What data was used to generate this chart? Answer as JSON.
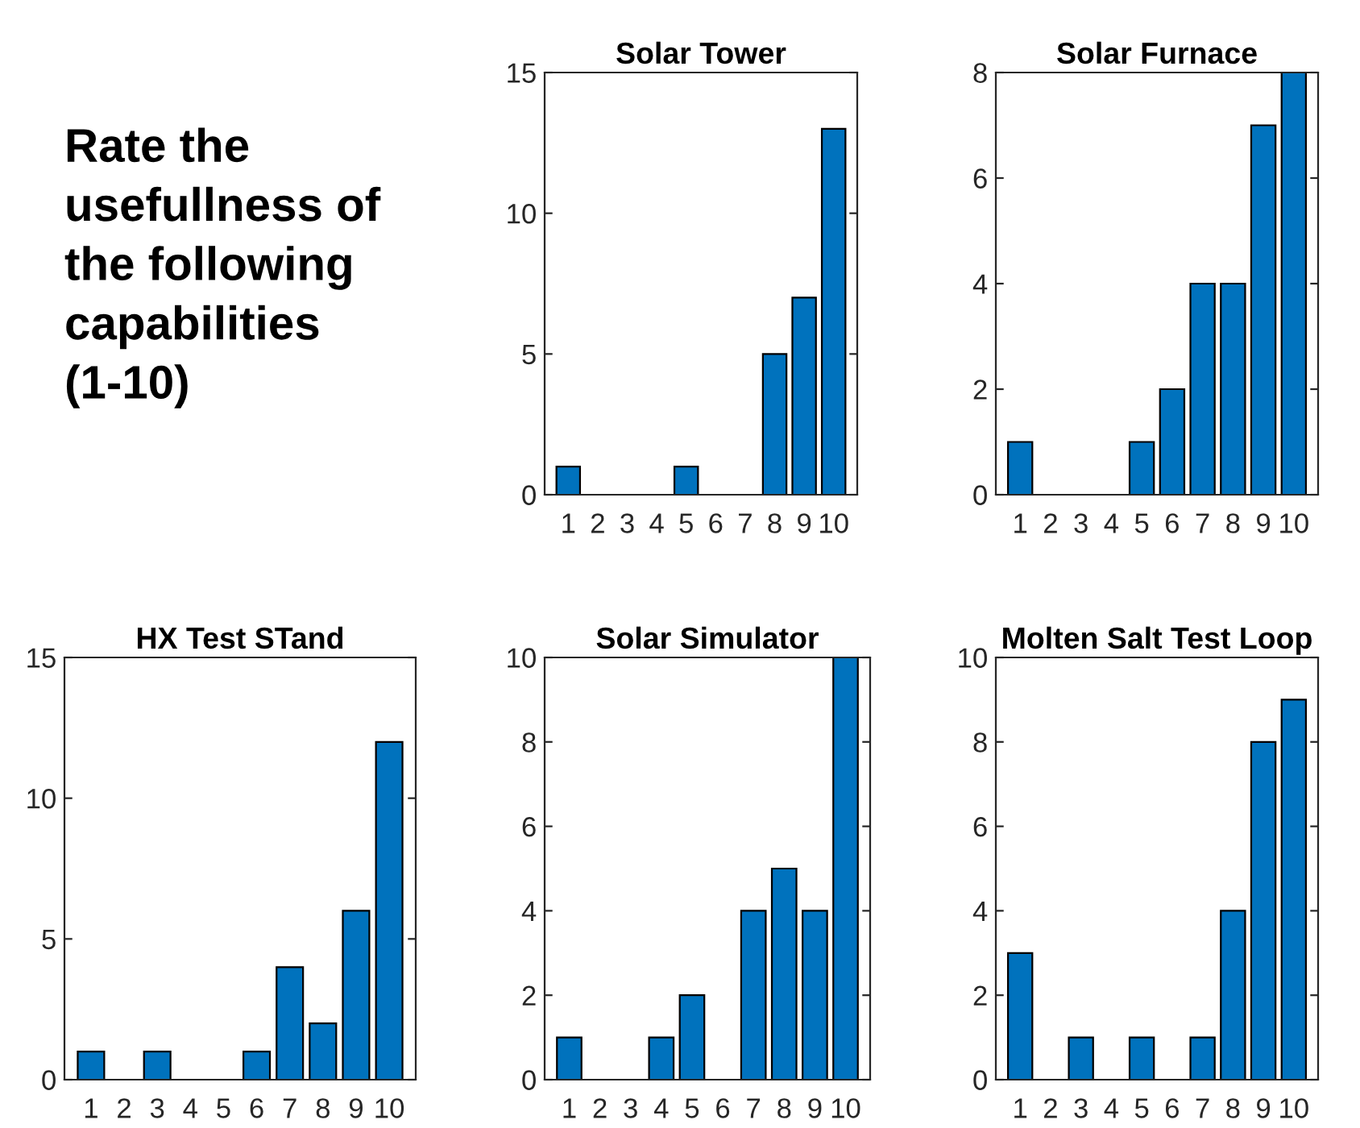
{
  "chart_data": [
    {
      "type": "other",
      "title": "Rate the usefullness of the following capabilities (1-10)"
    },
    {
      "type": "bar",
      "title": "Solar Tower",
      "categories": [
        "1",
        "2",
        "3",
        "4",
        "5",
        "6",
        "7",
        "8",
        "9",
        "10"
      ],
      "values": [
        1,
        0,
        0,
        0,
        1,
        0,
        0,
        5,
        7,
        13
      ],
      "color": "#0072bd",
      "ylim": [
        0,
        15
      ],
      "yticks": [
        0,
        5,
        10,
        15
      ]
    },
    {
      "type": "bar",
      "title": "Solar Furnace",
      "categories": [
        "1",
        "2",
        "3",
        "4",
        "5",
        "6",
        "7",
        "8",
        "9",
        "10"
      ],
      "values": [
        1,
        0,
        0,
        0,
        1,
        2,
        4,
        4,
        7,
        8
      ],
      "color": "#0072bd",
      "ylim": [
        0,
        8
      ],
      "yticks": [
        0,
        2,
        4,
        6,
        8
      ]
    },
    {
      "type": "bar",
      "title": "HX Test STand",
      "categories": [
        "1",
        "2",
        "3",
        "4",
        "5",
        "6",
        "7",
        "8",
        "9",
        "10"
      ],
      "values": [
        1,
        0,
        1,
        0,
        0,
        1,
        4,
        2,
        6,
        12
      ],
      "color": "#0072bd",
      "ylim": [
        0,
        15
      ],
      "yticks": [
        0,
        5,
        10,
        15
      ]
    },
    {
      "type": "bar",
      "title": "Solar Simulator",
      "categories": [
        "1",
        "2",
        "3",
        "4",
        "5",
        "6",
        "7",
        "8",
        "9",
        "10"
      ],
      "values": [
        1,
        0,
        0,
        1,
        2,
        0,
        4,
        5,
        4,
        10
      ],
      "color": "#0072bd",
      "ylim": [
        0,
        10
      ],
      "yticks": [
        0,
        2,
        4,
        6,
        8,
        10
      ]
    },
    {
      "type": "bar",
      "title": "Molten Salt Test Loop",
      "categories": [
        "1",
        "2",
        "3",
        "4",
        "5",
        "6",
        "7",
        "8",
        "9",
        "10"
      ],
      "values": [
        3,
        0,
        1,
        0,
        1,
        0,
        1,
        4,
        8,
        9
      ],
      "color": "#0072bd",
      "ylim": [
        0,
        10
      ],
      "yticks": [
        0,
        2,
        4,
        6,
        8,
        10
      ]
    }
  ]
}
